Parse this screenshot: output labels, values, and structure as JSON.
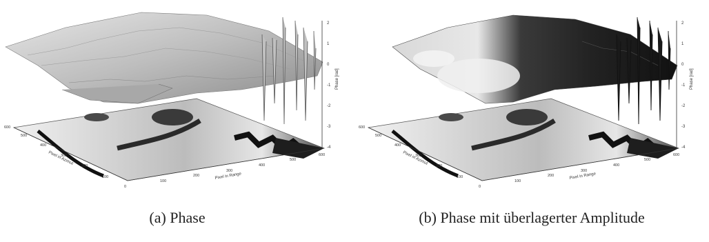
{
  "figure": {
    "captions": [
      {
        "label": "(a)",
        "text": "Phase"
      },
      {
        "label": "(b)",
        "text": "Phase mit überlagerter Amplitude"
      }
    ],
    "z_axis": {
      "title": "Phase [rad]",
      "ticks": [
        "2",
        "1",
        "0",
        "-1",
        "-2",
        "-3",
        "-4"
      ]
    },
    "range_axis": {
      "title": "Pixel in Range",
      "ticks": [
        "0",
        "100",
        "200",
        "300",
        "400",
        "500",
        "600"
      ]
    },
    "azimuth_axis": {
      "title": "Pixel in Azimut",
      "ticks": [
        "100",
        "200",
        "300",
        "400",
        "500",
        "600"
      ]
    },
    "shading": {
      "surface_a": "#c8c8c8",
      "surface_b_dark": "#2a2a2a",
      "surface_b_light": "#e0e0e0",
      "map_dark": "#1a1a1a",
      "map_light": "#f2f2f2"
    }
  }
}
